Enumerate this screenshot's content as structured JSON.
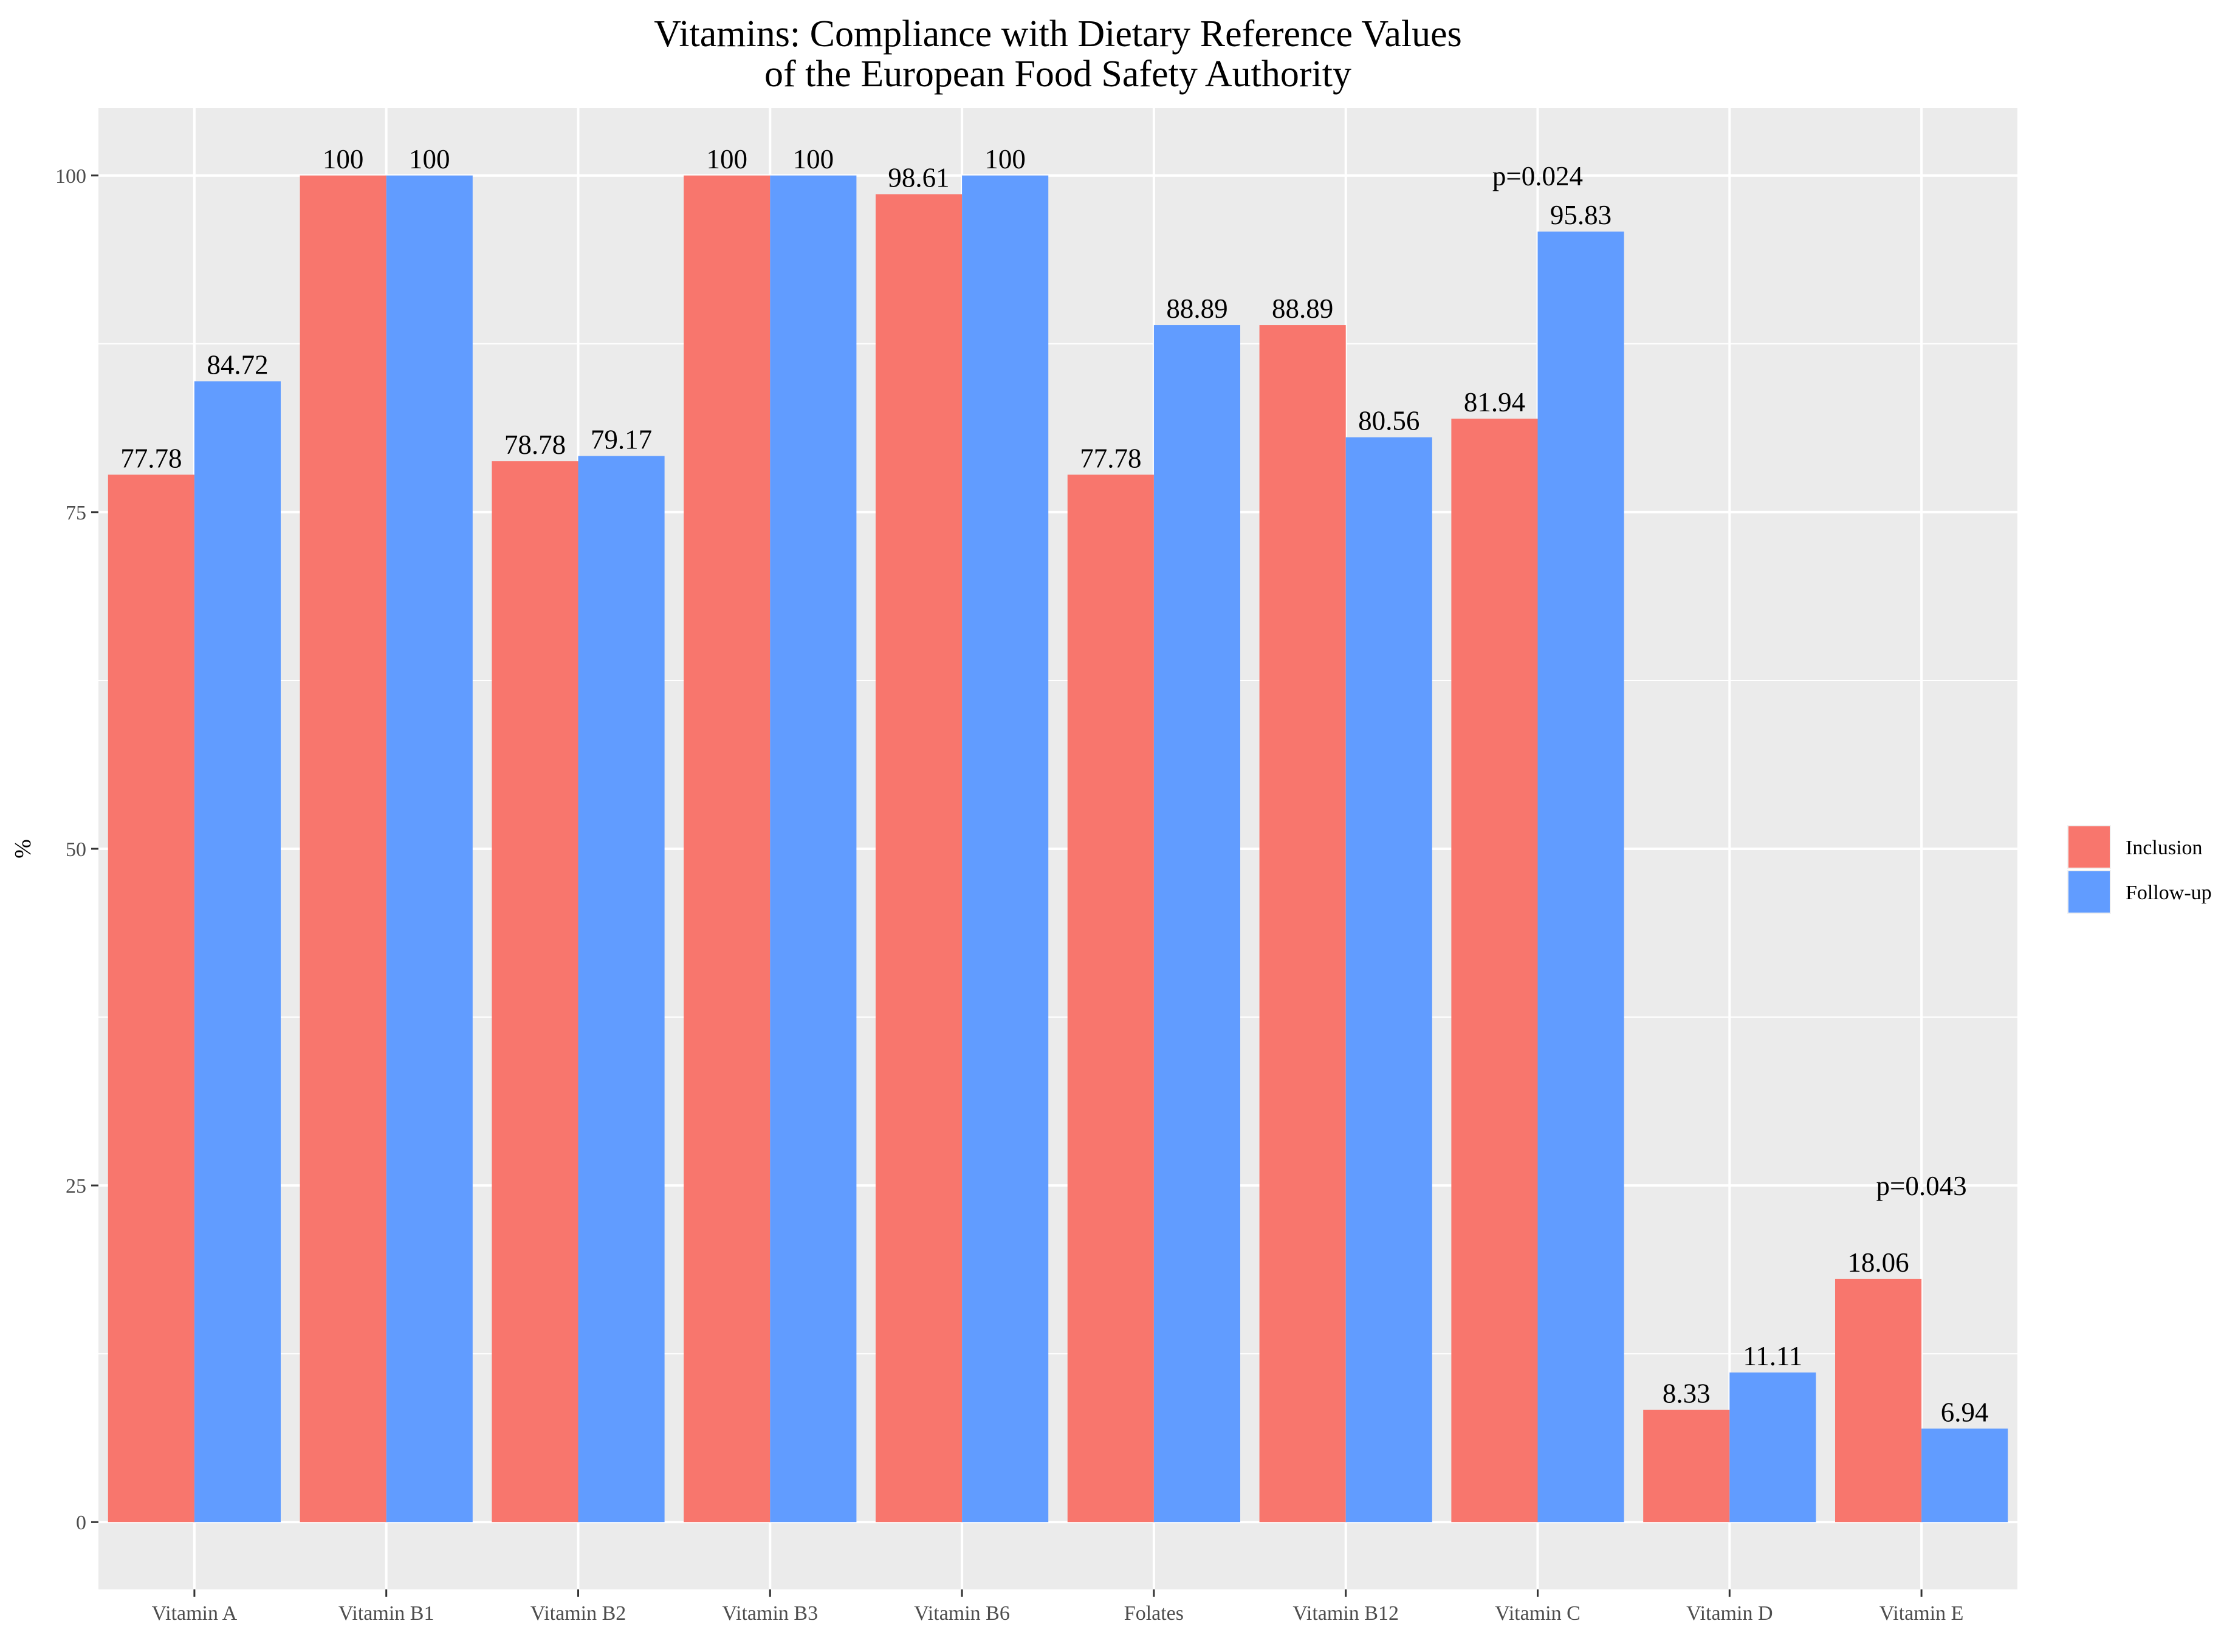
{
  "chart_data": {
    "type": "bar",
    "title": "Vitamins: Compliance with Dietary Reference Values",
    "subtitle": "of the European Food Safety Authority",
    "xlabel": "",
    "ylabel": "%",
    "ylim": [
      -5,
      105
    ],
    "yticks": [
      0,
      25,
      50,
      75,
      100
    ],
    "categories": [
      "Vitamin A",
      "Vitamin B1",
      "Vitamin B2",
      "Vitamin B3",
      "Vitamin B6",
      "Folates",
      "Vitamin B12",
      "Vitamin C",
      "Vitamin D",
      "Vitamin E"
    ],
    "series": [
      {
        "name": "Inclusion",
        "color": "#F8766D",
        "values": [
          77.78,
          100,
          78.78,
          100,
          98.61,
          77.78,
          88.89,
          81.94,
          8.33,
          18.06
        ],
        "labels": [
          "77.78",
          "100",
          "78.78",
          "100",
          "98.61",
          "77.78",
          "88.89",
          "81.94",
          "8.33",
          "18.06"
        ]
      },
      {
        "name": "Follow-up",
        "color": "#619CFF",
        "values": [
          84.72,
          100,
          79.17,
          100,
          100,
          88.89,
          80.56,
          95.83,
          11.11,
          6.94
        ],
        "labels": [
          "84.72",
          "100",
          "79.17",
          "100",
          "100",
          "88.89",
          "80.56",
          "95.83",
          "11.11",
          "6.94"
        ]
      }
    ],
    "annotations": [
      {
        "category": "Vitamin C",
        "y": 100,
        "text": "p=0.024"
      },
      {
        "category": "Vitamin E",
        "y": 25,
        "text": "p=0.043"
      }
    ],
    "legend": {
      "placement": "right",
      "entries": [
        "Inclusion",
        "Follow-up"
      ]
    },
    "grid": true,
    "panel_background": "#EBEBEB",
    "grid_color": "#FFFFFF"
  }
}
